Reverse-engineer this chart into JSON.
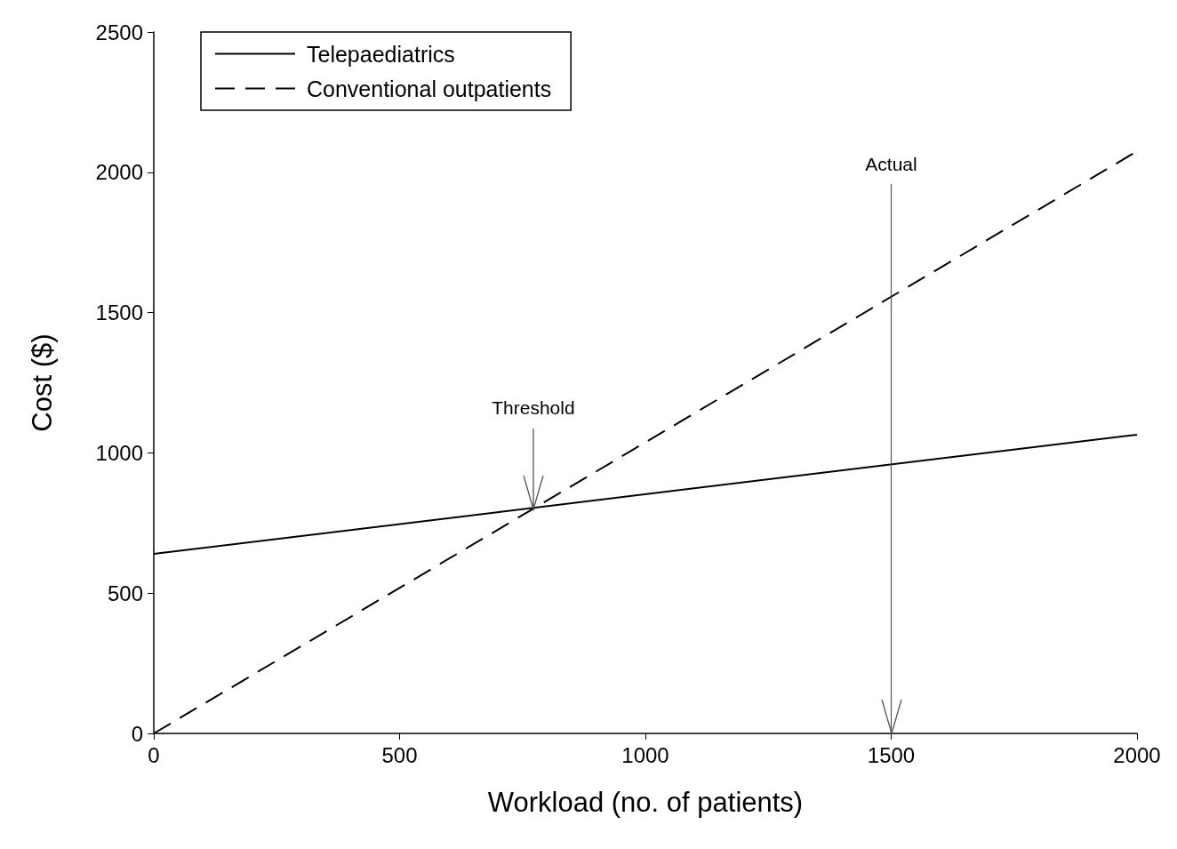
{
  "chart_data": {
    "type": "line",
    "xlabel": "Workload (no. of patients)",
    "ylabel": "Cost ($)",
    "x": [
      0,
      2000
    ],
    "series": [
      {
        "name": "Telepaediatrics",
        "color": "#000000",
        "values": [
          640,
          1065
        ],
        "line_style": "solid"
      },
      {
        "name": "Conventional outpatients",
        "color": "#000000",
        "values": [
          0,
          2075
        ],
        "line_style": "dashed"
      }
    ],
    "xlim": [
      0,
      2000
    ],
    "xticks": [
      0,
      500,
      1000,
      1500,
      2000
    ],
    "ylim": [
      0,
      2500
    ],
    "yticks": [
      0,
      500,
      1000,
      1500,
      2000,
      2500
    ],
    "annotations": [
      {
        "text": "Threshold",
        "x": 772,
        "y": 800
      }
    ],
    "ref_lines": [
      {
        "axis": "x",
        "value": 1500,
        "label": "Actual",
        "color": "#555555"
      }
    ],
    "legend": "top left",
    "marker": "none"
  }
}
